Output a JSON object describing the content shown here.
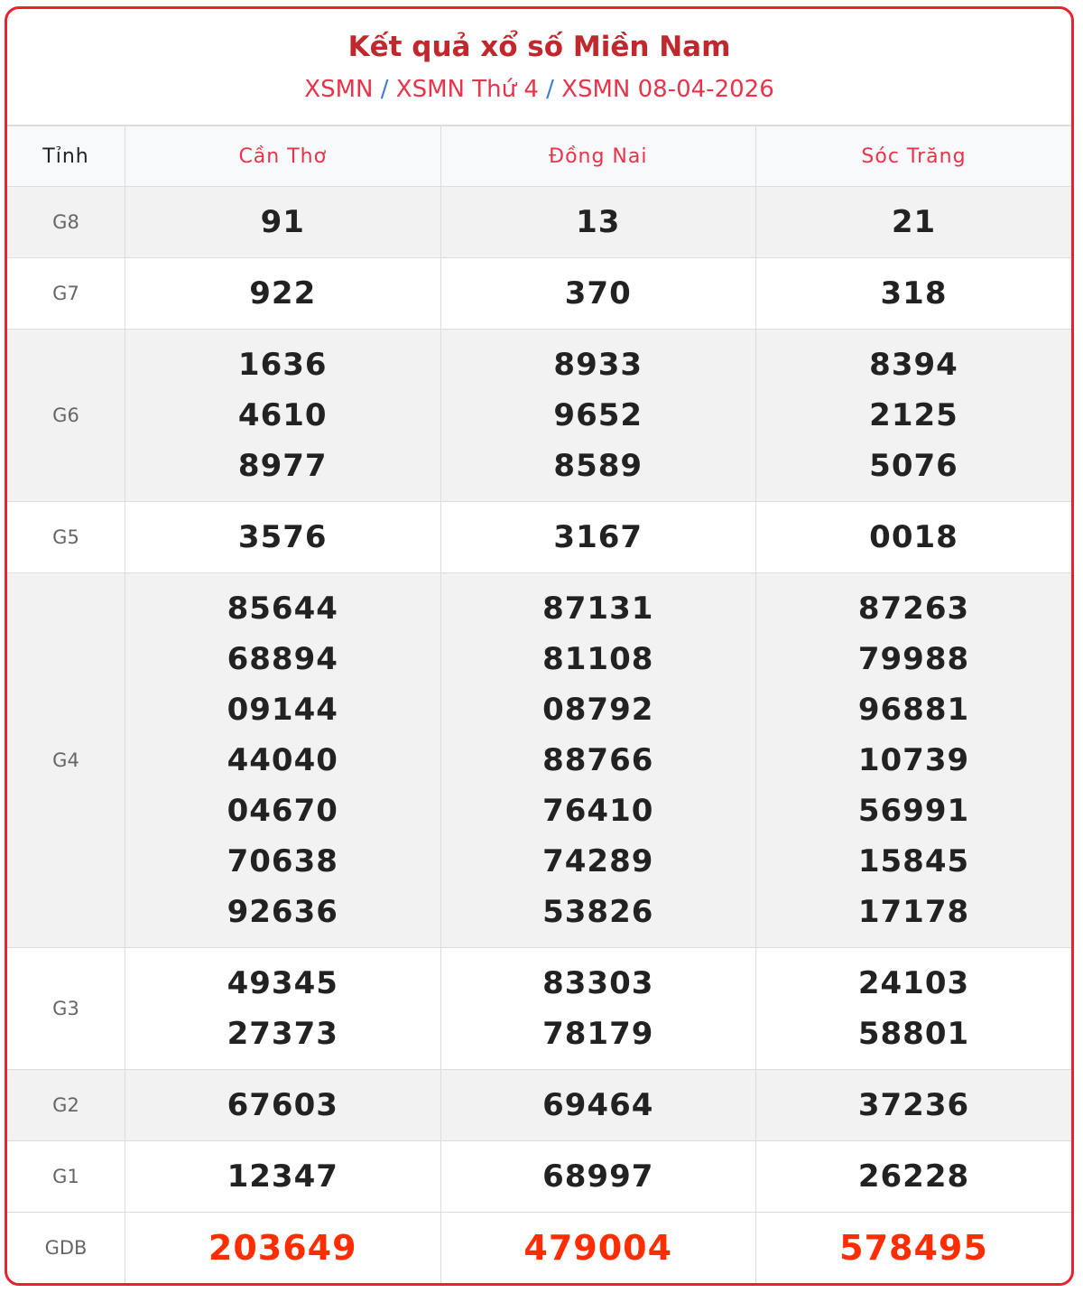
{
  "header": {
    "title": "Kết quả xổ số Miền Nam",
    "breadcrumbs": [
      "XSMN",
      "XSMN Thứ 4",
      "XSMN 08-04-2026"
    ],
    "separator": "/"
  },
  "table": {
    "columns": [
      "Tỉnh",
      "Cần Thơ",
      "Đồng Nai",
      "Sóc Trăng"
    ],
    "rows": [
      {
        "label": "G8",
        "values": [
          [
            "91"
          ],
          [
            "13"
          ],
          [
            "21"
          ]
        ]
      },
      {
        "label": "G7",
        "values": [
          [
            "922"
          ],
          [
            "370"
          ],
          [
            "318"
          ]
        ]
      },
      {
        "label": "G6",
        "values": [
          [
            "1636",
            "4610",
            "8977"
          ],
          [
            "8933",
            "9652",
            "8589"
          ],
          [
            "8394",
            "2125",
            "5076"
          ]
        ]
      },
      {
        "label": "G5",
        "values": [
          [
            "3576"
          ],
          [
            "3167"
          ],
          [
            "0018"
          ]
        ]
      },
      {
        "label": "G4",
        "values": [
          [
            "85644",
            "68894",
            "09144",
            "44040",
            "04670",
            "70638",
            "92636"
          ],
          [
            "87131",
            "81108",
            "08792",
            "88766",
            "76410",
            "74289",
            "53826"
          ],
          [
            "87263",
            "79988",
            "96881",
            "10739",
            "56991",
            "15845",
            "17178"
          ]
        ]
      },
      {
        "label": "G3",
        "values": [
          [
            "49345",
            "27373"
          ],
          [
            "83303",
            "78179"
          ],
          [
            "24103",
            "58801"
          ]
        ]
      },
      {
        "label": "G2",
        "values": [
          [
            "67603"
          ],
          [
            "69464"
          ],
          [
            "37236"
          ]
        ]
      },
      {
        "label": "G1",
        "values": [
          [
            "12347"
          ],
          [
            "68997"
          ],
          [
            "26228"
          ]
        ]
      },
      {
        "label": "GDB",
        "values": [
          [
            "203649"
          ],
          [
            "479004"
          ],
          [
            "578495"
          ]
        ]
      }
    ]
  },
  "colors": {
    "border": "#e8222e",
    "title": "#c0282d",
    "link": "#e8334a",
    "special_prize": "#ff2d00",
    "separator": "#3a7bd5"
  }
}
